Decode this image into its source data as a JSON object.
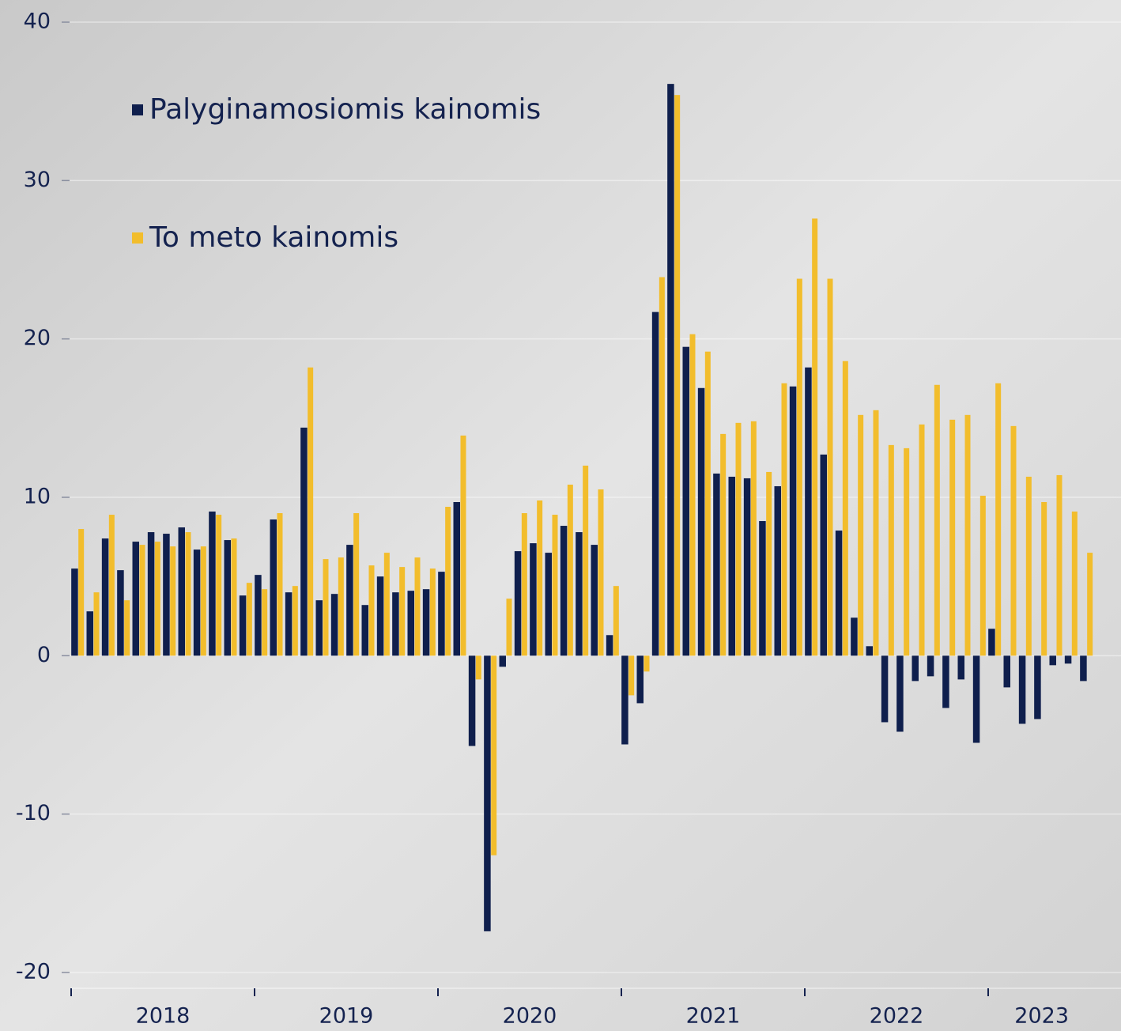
{
  "chart_data": {
    "type": "bar",
    "categories": [
      null,
      null,
      null,
      null,
      null,
      null,
      null,
      null,
      null,
      null,
      null,
      null,
      null,
      null,
      null,
      null,
      null,
      null,
      null,
      null,
      null,
      null,
      null,
      null,
      null,
      null,
      null,
      null,
      null,
      null,
      null,
      null,
      null,
      null,
      null,
      null,
      null,
      null,
      null,
      null,
      null,
      null,
      null,
      null,
      null,
      null,
      null,
      null,
      null,
      null,
      null,
      null,
      null,
      null,
      null,
      null,
      null,
      null,
      null,
      null,
      null,
      null,
      null,
      null,
      null,
      null,
      null
    ],
    "year_labels": [
      "2018",
      "2019",
      "2020",
      "2021",
      "2022",
      "2023"
    ],
    "series": [
      {
        "name": "Palyginamosiomis kainomis",
        "color": "#0f1f4d",
        "values": [
          5.5,
          2.8,
          7.4,
          5.4,
          7.2,
          7.8,
          7.7,
          8.1,
          6.7,
          9.1,
          7.3,
          3.8,
          5.1,
          8.6,
          4.0,
          14.4,
          3.5,
          3.9,
          7.0,
          3.2,
          5.0,
          4.0,
          4.1,
          4.2,
          5.3,
          9.7,
          -5.7,
          -17.4,
          -0.7,
          6.6,
          7.1,
          6.5,
          8.2,
          7.8,
          7.0,
          1.3,
          -5.6,
          -3.0,
          21.7,
          36.1,
          19.5,
          16.9,
          11.5,
          11.3,
          11.2,
          8.5,
          10.7,
          17.0,
          18.2,
          12.7,
          7.9,
          2.4,
          0.6,
          -4.2,
          -4.8,
          -1.6,
          -1.3,
          -3.3,
          -1.5,
          -5.5,
          1.7,
          -2.0,
          -4.3,
          -4.0,
          -0.6,
          -0.5,
          -1.6
        ]
      },
      {
        "name": "To meto kainomis",
        "color": "#f2bd2c",
        "values": [
          8.0,
          4.0,
          8.9,
          3.5,
          7.0,
          7.2,
          6.9,
          7.8,
          6.9,
          8.9,
          7.4,
          4.6,
          4.2,
          9.0,
          4.4,
          18.2,
          6.1,
          6.2,
          9.0,
          5.7,
          6.5,
          5.6,
          6.2,
          5.5,
          9.4,
          13.9,
          -1.5,
          -12.6,
          3.6,
          9.0,
          9.8,
          8.9,
          10.8,
          12.0,
          10.5,
          4.4,
          -2.5,
          -1.0,
          23.9,
          35.4,
          20.3,
          19.2,
          14.0,
          14.7,
          14.8,
          11.6,
          17.2,
          23.8,
          27.6,
          23.8,
          18.6,
          15.2,
          15.5,
          13.3,
          13.1,
          14.6,
          17.1,
          14.9,
          15.2,
          10.1,
          17.2,
          14.5,
          11.3,
          9.7,
          11.4,
          9.1,
          6.5
        ]
      }
    ],
    "ylim": [
      -21,
      40.4
    ],
    "yticks": [
      -20,
      -10,
      0,
      10,
      20,
      30,
      40
    ],
    "grid": true
  }
}
